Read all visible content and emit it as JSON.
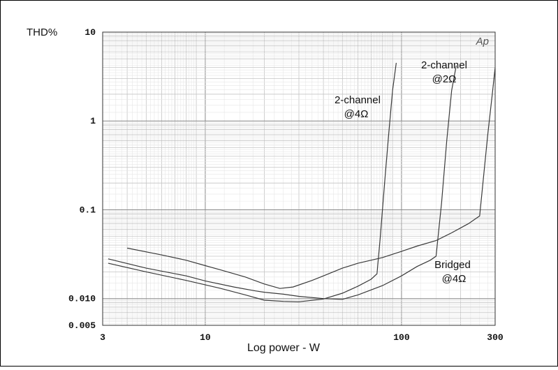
{
  "chart_data": {
    "type": "line",
    "ylabel": "THD%",
    "xlabel": "Log power - W",
    "badge": "Ap",
    "x_scale": "log",
    "y_scale": "log",
    "xlim": [
      3,
      300
    ],
    "ylim": [
      0.005,
      10
    ],
    "x_ticks": [
      {
        "value": 3,
        "label": "3"
      },
      {
        "value": 10,
        "label": "10"
      },
      {
        "value": 100,
        "label": "100"
      },
      {
        "value": 300,
        "label": "300"
      }
    ],
    "y_ticks": [
      {
        "value": 10,
        "label": "10"
      },
      {
        "value": 1,
        "label": "1"
      },
      {
        "value": 0.1,
        "label": "0.1"
      },
      {
        "value": 0.01,
        "label": "0.010"
      },
      {
        "value": 0.005,
        "label": "0.005"
      }
    ],
    "grid": true,
    "annotations": [
      {
        "lines": [
          "2-channel",
          "@4Ω"
        ],
        "series": "2-channel @4Ω"
      },
      {
        "lines": [
          "2-channel",
          "@2Ω"
        ],
        "series": "2-channel @2Ω"
      },
      {
        "lines": [
          "Bridged",
          "@4Ω"
        ],
        "series": "Bridged @4Ω"
      }
    ],
    "series": [
      {
        "label_ref": "2-channel @4Ω",
        "points": [
          [
            3.2,
            0.025
          ],
          [
            5,
            0.02
          ],
          [
            8,
            0.016
          ],
          [
            12,
            0.013
          ],
          [
            16,
            0.011
          ],
          [
            20,
            0.0096
          ],
          [
            25,
            0.0093
          ],
          [
            30,
            0.0092
          ],
          [
            40,
            0.0099
          ],
          [
            50,
            0.0115
          ],
          [
            60,
            0.0138
          ],
          [
            70,
            0.0165
          ],
          [
            75,
            0.019
          ],
          [
            78,
            0.05
          ],
          [
            82,
            0.2
          ],
          [
            86,
            0.7
          ],
          [
            90,
            2.2
          ],
          [
            94,
            4.5
          ]
        ]
      },
      {
        "label_ref": "2-channel @2Ω",
        "points": [
          [
            3.2,
            0.028
          ],
          [
            5,
            0.022
          ],
          [
            8,
            0.018
          ],
          [
            10,
            0.0158
          ],
          [
            14,
            0.0135
          ],
          [
            18,
            0.0122
          ],
          [
            20,
            0.0118
          ],
          [
            25,
            0.0112
          ],
          [
            30,
            0.0106
          ],
          [
            40,
            0.01
          ],
          [
            50,
            0.0098
          ],
          [
            60,
            0.011
          ],
          [
            80,
            0.014
          ],
          [
            100,
            0.018
          ],
          [
            120,
            0.023
          ],
          [
            140,
            0.027
          ],
          [
            150,
            0.03
          ],
          [
            160,
            0.12
          ],
          [
            170,
            0.6
          ],
          [
            180,
            2.2
          ],
          [
            190,
            4.2
          ]
        ]
      },
      {
        "label_ref": "Bridged @4Ω",
        "points": [
          [
            4,
            0.037
          ],
          [
            6,
            0.031
          ],
          [
            8,
            0.027
          ],
          [
            10,
            0.0235
          ],
          [
            12,
            0.021
          ],
          [
            16,
            0.0175
          ],
          [
            20,
            0.0146
          ],
          [
            24,
            0.013
          ],
          [
            28,
            0.0135
          ],
          [
            35,
            0.016
          ],
          [
            40,
            0.018
          ],
          [
            50,
            0.022
          ],
          [
            60,
            0.025
          ],
          [
            80,
            0.029
          ],
          [
            100,
            0.034
          ],
          [
            120,
            0.039
          ],
          [
            150,
            0.045
          ],
          [
            180,
            0.055
          ],
          [
            220,
            0.07
          ],
          [
            240,
            0.08
          ],
          [
            250,
            0.085
          ],
          [
            260,
            0.2
          ],
          [
            275,
            0.7
          ],
          [
            290,
            2
          ],
          [
            300,
            4
          ]
        ]
      }
    ]
  }
}
